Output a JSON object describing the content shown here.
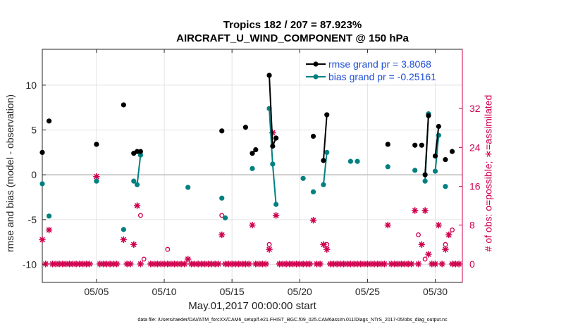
{
  "chart_data": {
    "type": "scatter",
    "title": "Tropics 182 / 207 = 87.923%",
    "subtitle": "AIRCRAFT_U_WIND_COMPONENT @ 150 hPa",
    "xlabel": "May.01,2017 00:00:00 start",
    "ylabel": "rmse and bias (model - observation)",
    "ylabel_right": "# of obs: o=possible;  ∗=assimilated",
    "footer": "data file: /Users/raeder/DAI/ATM_forcXX/CAM6_setup/f.e21.FHIST_BGC.f09_025.CAM6assim.011/Diags_NTrS_2017-05/obs_diag_output.nc",
    "xlim": [
      1,
      32
    ],
    "ylim": [
      -12,
      14
    ],
    "ylim_right": [
      -3.8,
      44.2
    ],
    "x_ticks": [
      5,
      10,
      15,
      20,
      25,
      30
    ],
    "x_tick_labels": [
      "05/05",
      "05/10",
      "05/15",
      "05/20",
      "05/25",
      "05/30"
    ],
    "y_ticks": [
      -10,
      -5,
      0,
      5,
      10
    ],
    "y_tick_labels": [
      "-10",
      "-5",
      "0",
      "5",
      "10"
    ],
    "y2_ticks": [
      0,
      8,
      16,
      24,
      32
    ],
    "y2_tick_labels": [
      "0",
      "8",
      "16",
      "24",
      "32"
    ],
    "grid": true,
    "legend_position": "top-right",
    "series": [
      {
        "name": "rmse grand pr = 3.8068",
        "color": "#000000",
        "points": [
          [
            1.0,
            2.5
          ],
          [
            1.5,
            6.0
          ],
          [
            5.0,
            3.4
          ],
          [
            7.0,
            7.8
          ],
          [
            7.75,
            2.4
          ],
          [
            8.0,
            2.6
          ],
          [
            8.25,
            2.6
          ],
          [
            14.25,
            4.9
          ],
          [
            16.0,
            5.3
          ],
          [
            16.5,
            2.4
          ],
          [
            16.75,
            2.8
          ],
          [
            17.75,
            11.1
          ],
          [
            18.0,
            3.2
          ],
          [
            18.25,
            4.1
          ],
          [
            21.0,
            4.3
          ],
          [
            21.75,
            1.6
          ],
          [
            22.0,
            6.7
          ],
          [
            26.5,
            3.4
          ],
          [
            28.5,
            3.3
          ],
          [
            29.0,
            3.3
          ],
          [
            29.25,
            0.0
          ],
          [
            29.5,
            6.6
          ],
          [
            30.0,
            2.1
          ],
          [
            30.25,
            5.4
          ],
          [
            30.75,
            1.7
          ],
          [
            31.25,
            2.6
          ]
        ],
        "segments": [
          [
            [
              7.75,
              2.4
            ],
            [
              8.0,
              2.6
            ],
            [
              8.25,
              2.6
            ]
          ],
          [
            [
              16.5,
              2.4
            ],
            [
              16.75,
              2.8
            ]
          ],
          [
            [
              17.75,
              11.1
            ],
            [
              18.0,
              3.2
            ],
            [
              18.25,
              4.1
            ]
          ],
          [
            [
              21.75,
              1.6
            ],
            [
              22.0,
              6.7
            ]
          ],
          [
            [
              29.25,
              0.0
            ],
            [
              29.5,
              6.6
            ]
          ],
          [
            [
              30.0,
              2.1
            ],
            [
              30.25,
              5.4
            ]
          ]
        ]
      },
      {
        "name": "bias grand pr = -0.25161",
        "color": "#008080",
        "points": [
          [
            1.0,
            -1.0
          ],
          [
            1.5,
            -4.6
          ],
          [
            5.0,
            -0.7
          ],
          [
            7.0,
            -6.1
          ],
          [
            7.75,
            -0.7
          ],
          [
            8.0,
            -1.1
          ],
          [
            8.25,
            2.2
          ],
          [
            11.75,
            -1.4
          ],
          [
            14.25,
            -2.6
          ],
          [
            14.5,
            -4.8
          ],
          [
            16.5,
            0.7
          ],
          [
            17.75,
            7.4
          ],
          [
            18.0,
            1.2
          ],
          [
            18.25,
            -3.3
          ],
          [
            20.25,
            -0.4
          ],
          [
            21.0,
            -1.9
          ],
          [
            21.75,
            -1.1
          ],
          [
            22.0,
            2.5
          ],
          [
            23.75,
            1.5
          ],
          [
            24.25,
            1.5
          ],
          [
            26.5,
            0.9
          ],
          [
            28.5,
            0.5
          ],
          [
            29.25,
            -0.7
          ],
          [
            29.5,
            6.8
          ],
          [
            30.0,
            0.4
          ],
          [
            30.25,
            4.4
          ],
          [
            30.75,
            -1.3
          ]
        ],
        "segments": [
          [
            [
              7.75,
              -0.7
            ],
            [
              8.0,
              -1.1
            ],
            [
              8.25,
              2.2
            ]
          ],
          [
            [
              17.75,
              7.4
            ],
            [
              18.0,
              1.2
            ],
            [
              18.25,
              -3.3
            ]
          ],
          [
            [
              21.75,
              -1.1
            ],
            [
              22.0,
              2.5
            ]
          ],
          [
            [
              29.25,
              -0.7
            ],
            [
              29.5,
              6.8
            ]
          ],
          [
            [
              30.0,
              0.4
            ],
            [
              30.25,
              4.4
            ]
          ]
        ]
      },
      {
        "name": "# of obs assimilated",
        "color": "#d0004f",
        "axis": "right",
        "points": [
          [
            1.0,
            5
          ],
          [
            1.25,
            0
          ],
          [
            1.5,
            7
          ],
          [
            1.75,
            0
          ],
          [
            2.0,
            0
          ],
          [
            2.25,
            0
          ],
          [
            2.5,
            0
          ],
          [
            2.75,
            0
          ],
          [
            3.0,
            0
          ],
          [
            3.25,
            0
          ],
          [
            3.5,
            0
          ],
          [
            3.75,
            0
          ],
          [
            4.0,
            0
          ],
          [
            4.25,
            0
          ],
          [
            4.5,
            0
          ],
          [
            5.0,
            18
          ],
          [
            5.25,
            0
          ],
          [
            5.5,
            0
          ],
          [
            5.75,
            0
          ],
          [
            6.0,
            0
          ],
          [
            6.25,
            0
          ],
          [
            6.5,
            0
          ],
          [
            7.0,
            5
          ],
          [
            7.25,
            0
          ],
          [
            7.5,
            0
          ],
          [
            7.75,
            4
          ],
          [
            8.0,
            12
          ],
          [
            8.25,
            0
          ],
          [
            9.0,
            0
          ],
          [
            9.25,
            0
          ],
          [
            9.5,
            0
          ],
          [
            9.75,
            0
          ],
          [
            10.0,
            0
          ],
          [
            10.25,
            0
          ],
          [
            10.5,
            0
          ],
          [
            10.75,
            0
          ],
          [
            11.0,
            0
          ],
          [
            11.25,
            0
          ],
          [
            11.5,
            0
          ],
          [
            11.75,
            1
          ],
          [
            12.0,
            0
          ],
          [
            12.25,
            0
          ],
          [
            12.5,
            0
          ],
          [
            12.75,
            0
          ],
          [
            13.0,
            0
          ],
          [
            13.25,
            0
          ],
          [
            13.5,
            0
          ],
          [
            13.75,
            0
          ],
          [
            14.0,
            0
          ],
          [
            14.25,
            6
          ],
          [
            14.5,
            0
          ],
          [
            14.75,
            0
          ],
          [
            15.0,
            0
          ],
          [
            15.25,
            0
          ],
          [
            15.5,
            0
          ],
          [
            15.75,
            0
          ],
          [
            16.0,
            0
          ],
          [
            16.25,
            0
          ],
          [
            16.5,
            8
          ],
          [
            16.75,
            0
          ],
          [
            17.0,
            0
          ],
          [
            17.25,
            0
          ],
          [
            17.5,
            0
          ],
          [
            17.75,
            3
          ],
          [
            18.0,
            27
          ],
          [
            18.25,
            10
          ],
          [
            18.5,
            0
          ],
          [
            18.75,
            0
          ],
          [
            19.0,
            0
          ],
          [
            19.25,
            0
          ],
          [
            19.5,
            0
          ],
          [
            19.75,
            0
          ],
          [
            20.0,
            0
          ],
          [
            20.25,
            0
          ],
          [
            20.5,
            0
          ],
          [
            20.75,
            0
          ],
          [
            21.0,
            9
          ],
          [
            21.25,
            0
          ],
          [
            21.5,
            0
          ],
          [
            21.75,
            4
          ],
          [
            22.0,
            3
          ],
          [
            22.25,
            0
          ],
          [
            22.5,
            0
          ],
          [
            22.75,
            0
          ],
          [
            23.0,
            0
          ],
          [
            23.25,
            0
          ],
          [
            23.5,
            0
          ],
          [
            23.75,
            0
          ],
          [
            24.0,
            0
          ],
          [
            24.25,
            0
          ],
          [
            24.5,
            0
          ],
          [
            24.75,
            0
          ],
          [
            25.0,
            0
          ],
          [
            25.25,
            0
          ],
          [
            25.5,
            0
          ],
          [
            25.75,
            0
          ],
          [
            26.0,
            0
          ],
          [
            26.25,
            0
          ],
          [
            26.5,
            8
          ],
          [
            26.75,
            0
          ],
          [
            27.0,
            0
          ],
          [
            27.25,
            0
          ],
          [
            27.5,
            0
          ],
          [
            27.75,
            0
          ],
          [
            28.0,
            0
          ],
          [
            28.25,
            0
          ],
          [
            28.5,
            11
          ],
          [
            28.75,
            0
          ],
          [
            29.0,
            4
          ],
          [
            29.25,
            11
          ],
          [
            29.5,
            2
          ],
          [
            29.75,
            0
          ],
          [
            30.0,
            0
          ],
          [
            30.25,
            8
          ],
          [
            30.5,
            0
          ],
          [
            30.75,
            3
          ],
          [
            31.0,
            6
          ],
          [
            31.25,
            0
          ],
          [
            31.5,
            0
          ],
          [
            31.75,
            0
          ]
        ]
      },
      {
        "name": "# of obs possible",
        "color": "#d0004f",
        "axis": "right",
        "marker": "circle",
        "points": [
          [
            8.25,
            10
          ],
          [
            8.5,
            1
          ],
          [
            10.25,
            3
          ],
          [
            14.25,
            10
          ],
          [
            17.75,
            4
          ],
          [
            22.0,
            4
          ],
          [
            28.75,
            6
          ],
          [
            29.25,
            1
          ],
          [
            30.75,
            4
          ],
          [
            31.25,
            7
          ]
        ]
      }
    ]
  }
}
